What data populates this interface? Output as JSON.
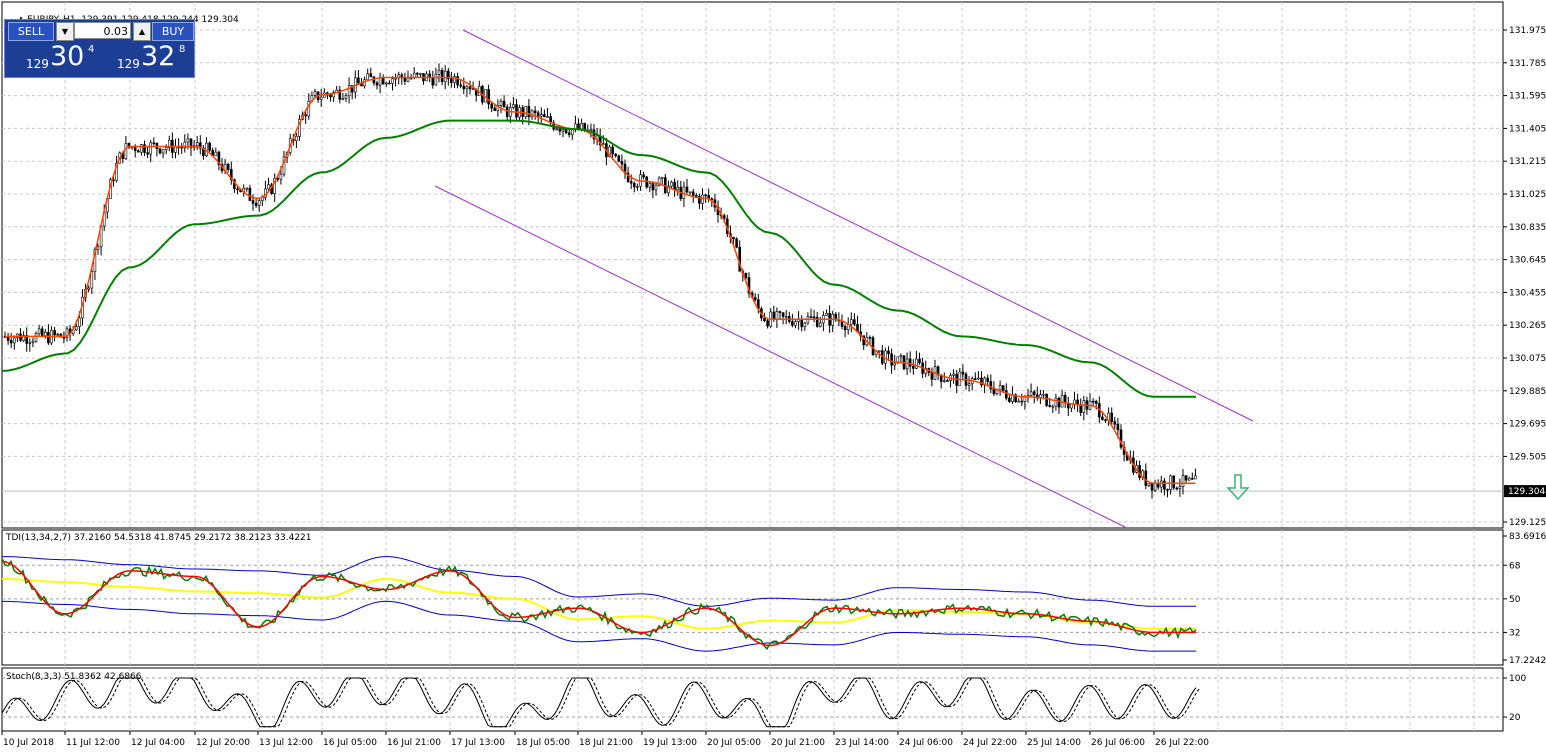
{
  "header": {
    "title": "EURJPY.,H1",
    "ohlc": "129.391 129.418 129.244 129.304"
  },
  "trade_panel": {
    "sell_label": "SELL",
    "buy_label": "BUY",
    "lot": "0.03",
    "sell_price_prefix": "129",
    "sell_price_main": "30",
    "sell_price_sup": "4",
    "buy_price_prefix": "129",
    "buy_price_main": "32",
    "buy_price_sup": "8"
  },
  "main_axis": {
    "ticks": [
      "131.975",
      "131.785",
      "131.595",
      "131.405",
      "131.215",
      "131.025",
      "130.835",
      "130.645",
      "130.455",
      "130.265",
      "130.075",
      "129.885",
      "129.695",
      "129.505",
      "129.125"
    ],
    "current_price": "129.304"
  },
  "tdi": {
    "label": "TDI(13,34,2,7) 37.2160 54.5318 41.8745 29.2172 38.2123 33.4221",
    "ticks": [
      "83.6916",
      "68",
      "50",
      "32",
      "17.2242"
    ]
  },
  "stoch": {
    "label": "Stoch(8,3,3) 51.8362 42.6866",
    "ticks": [
      "100",
      "20"
    ]
  },
  "time_axis": {
    "labels": [
      "10 Jul 2018",
      "11 Jul 12:00",
      "12 Jul 04:00",
      "12 Jul 20:00",
      "13 Jul 12:00",
      "16 Jul 05:00",
      "16 Jul 21:00",
      "17 Jul 13:00",
      "18 Jul 05:00",
      "18 Jul 21:00",
      "19 Jul 13:00",
      "20 Jul 05:00",
      "20 Jul 21:00",
      "23 Jul 14:00",
      "24 Jul 06:00",
      "24 Jul 22:00",
      "25 Jul 14:00",
      "26 Jul 06:00",
      "26 Jul 22:00"
    ]
  },
  "colors": {
    "candles": "#000000",
    "ma_fast": "#ff4500",
    "ma_slow": "#008000",
    "channel": "#9932cc",
    "tdi_band": "#0000cd",
    "tdi_mid": "#ffff00",
    "tdi_rsi": "#008000",
    "tdi_signal": "#ff0000",
    "arrow": "#3cb371"
  },
  "chart_data": {
    "type": "line",
    "symbol": "EURJPY.",
    "timeframe": "H1",
    "x": [
      "10 Jul 2018",
      "11 Jul 12:00",
      "12 Jul 04:00",
      "12 Jul 20:00",
      "13 Jul 12:00",
      "16 Jul 05:00",
      "16 Jul 21:00",
      "17 Jul 13:00",
      "18 Jul 05:00",
      "18 Jul 21:00",
      "19 Jul 13:00",
      "20 Jul 05:00",
      "20 Jul 21:00",
      "23 Jul 14:00",
      "24 Jul 06:00",
      "24 Jul 22:00",
      "25 Jul 14:00",
      "26 Jul 06:00",
      "26 Jul 22:00"
    ],
    "series": [
      {
        "values": [
          130.2,
          130.2,
          131.3,
          131.3,
          131.0,
          131.6,
          131.7,
          131.7,
          131.5,
          131.4,
          131.1,
          131.0,
          130.3,
          130.3,
          130.05,
          129.95,
          129.85,
          129.8,
          129.35
        ]
      },
      {
        "values": [
          130.0,
          130.1,
          130.6,
          130.85,
          130.9,
          131.15,
          131.35,
          131.45,
          131.45,
          131.4,
          131.25,
          131.15,
          130.8,
          130.5,
          130.35,
          130.2,
          130.15,
          130.05,
          129.85
        ]
      }
    ],
    "ylim": [
      129.125,
      131.975
    ],
    "grid": true,
    "tdi": {
      "values": [
        70,
        42,
        65,
        62,
        35,
        62,
        55,
        65,
        40,
        45,
        32,
        45,
        25,
        45,
        42,
        45,
        42,
        38,
        32
      ],
      "ylim": [
        17.2242,
        83.6916
      ]
    },
    "stoch": {
      "values": [
        20,
        60,
        85,
        80,
        20,
        75,
        80,
        60,
        10,
        80,
        30,
        60,
        10,
        85,
        50,
        80,
        40,
        50,
        51.8362
      ],
      "ylim": [
        0,
        100
      ]
    }
  }
}
